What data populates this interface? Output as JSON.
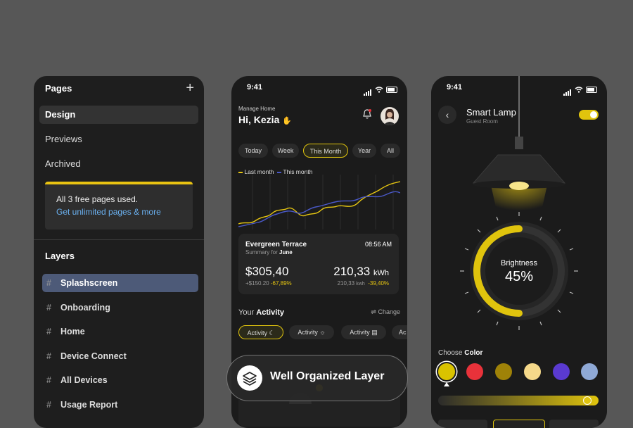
{
  "pages_panel": {
    "title": "Pages",
    "pages": [
      {
        "label": "Design",
        "selected": true
      },
      {
        "label": "Previews",
        "selected": false
      },
      {
        "label": "Archived",
        "selected": false
      }
    ],
    "notice_line1": "All 3 free pages used.",
    "notice_link": "Get unlimited pages & more",
    "layers_title": "Layers",
    "layers": [
      {
        "label": "Splashscreen",
        "selected": true
      },
      {
        "label": "Onboarding",
        "selected": false
      },
      {
        "label": "Home",
        "selected": false
      },
      {
        "label": "Device Connect",
        "selected": false
      },
      {
        "label": "All Devices",
        "selected": false
      },
      {
        "label": "Usage Report",
        "selected": false
      }
    ]
  },
  "home_phone": {
    "time": "9:41",
    "subtitle": "Manage Home",
    "greeting": "Hi, Kezia",
    "filters": [
      "Today",
      "Week",
      "This Month",
      "Year",
      "All"
    ],
    "selected_filter": "This Month",
    "legend": [
      "Last month",
      "This month"
    ],
    "colors": {
      "last_month": "#e5c511",
      "this_month": "#4a59c9"
    },
    "card": {
      "place": "Evergreen Terrace",
      "time": "08:56 AM",
      "summary_prefix": "Summary for",
      "summary_month": "June",
      "cost": "$305,40",
      "cost_sub": "+$150.20",
      "cost_pct": "-67,89%",
      "energy": "210,33",
      "energy_unit": "kWh",
      "energy_sub": "210,33",
      "energy_sub_unit": "kwh",
      "energy_pct": "-39,40%"
    },
    "activity_title_prefix": "Your",
    "activity_title": "Activity",
    "change_label": "Change",
    "activity_chips": [
      "Activity",
      "Activity",
      "Activity",
      "Ac"
    ]
  },
  "lamp_phone": {
    "time": "9:41",
    "title": "Smart Lamp",
    "room": "Guest Room",
    "toggle_on": true,
    "brightness_label": "Brightness",
    "brightness_value": "45%",
    "brightness": 0.45,
    "choose_prefix": "Choose",
    "choose_label": "Color",
    "colors": [
      "#d9c300",
      "#e8323a",
      "#9f8208",
      "#f5d98a",
      "#5a3ad0",
      "#8fa9d6"
    ],
    "selected_color": 0
  },
  "badge": {
    "label": "Well Organized Layer"
  }
}
